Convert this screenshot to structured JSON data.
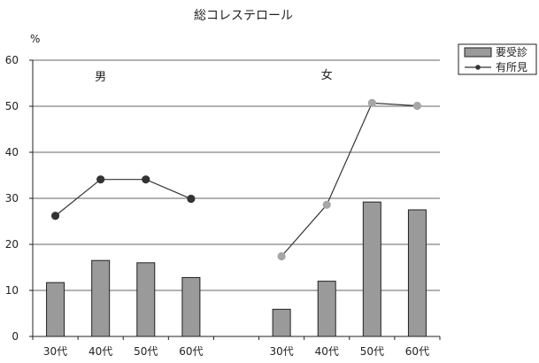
{
  "chart_data": {
    "type": "bar",
    "title": "総コレステロール",
    "unit": "%",
    "ylim": [
      0,
      60
    ],
    "yticks": [
      0,
      10,
      20,
      30,
      40,
      50,
      60
    ],
    "grid": true,
    "legend_position": "top-right",
    "groups": [
      {
        "label": "男",
        "categories": [
          "30代",
          "40代",
          "50代",
          "60代"
        ],
        "bar_values": [
          11.7,
          16.5,
          16.0,
          12.8
        ],
        "line_values": [
          26.2,
          34.1,
          34.1,
          29.9
        ]
      },
      {
        "label": "女",
        "categories": [
          "30代",
          "40代",
          "50代",
          "60代"
        ],
        "bar_values": [
          5.9,
          12.0,
          29.2,
          27.5
        ],
        "line_values": [
          17.4,
          28.6,
          50.7,
          50.1
        ]
      }
    ],
    "series": [
      {
        "name": "要受診",
        "kind": "bar",
        "color": "#9a9a9a"
      },
      {
        "name": "有所見",
        "kind": "line",
        "colors": [
          "#333333",
          "#a6a6a6"
        ]
      }
    ]
  }
}
